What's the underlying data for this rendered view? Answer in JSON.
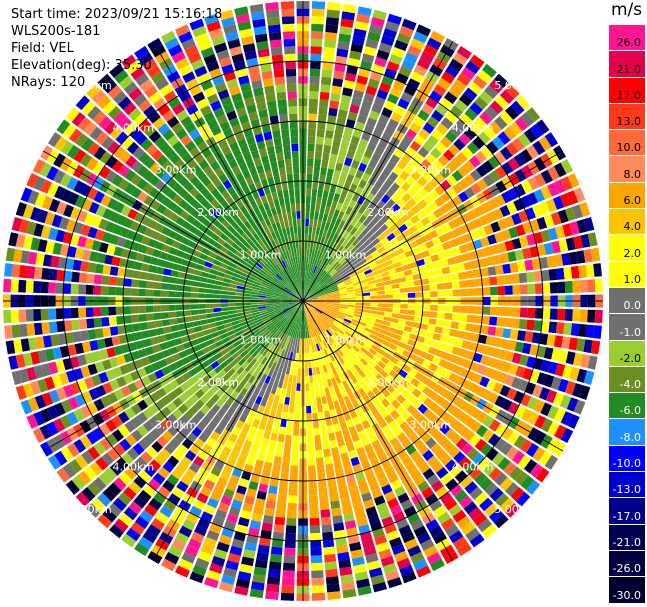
{
  "header": {
    "start_time": "Start time: 2023/09/21 15:16:18",
    "instrument": "WLS200s-181",
    "field": "Field: VEL",
    "elevation": "Elevation(deg): 35.30",
    "nrays": "NRays: 120"
  },
  "colorbar": {
    "unit": "m/s",
    "ticks": [
      "26.0",
      "21.0",
      "17.0",
      "13.0",
      "10.0",
      "8.0",
      "6.0",
      "4.0",
      "2.0",
      "1.0",
      "0.0",
      "-1.0",
      "-2.0",
      "-4.0",
      "-6.0",
      "-8.0",
      "-10.0",
      "-13.0",
      "-17.0",
      "-21.0",
      "-26.0",
      "-30.0"
    ],
    "colors": [
      "#ff1493",
      "#e6004c",
      "#ff0000",
      "#ff3a1a",
      "#ff6a3c",
      "#ff8a5a",
      "#ffa500",
      "#ffc400",
      "#ffff00",
      "#ffff00",
      "#707070",
      "#707070",
      "#9acd32",
      "#6b8e23",
      "#228b22",
      "#1e90ff",
      "#0000ff",
      "#0000cd",
      "#00008b",
      "#000050",
      "#000040",
      "#000030"
    ]
  },
  "chart_data": {
    "type": "ppi",
    "field": "VEL",
    "units": "m/s",
    "nrays": 120,
    "range_rings_km": [
      1.0,
      2.0,
      3.0,
      4.0
    ],
    "ring_labels": [
      "1.00km",
      "2.00km",
      "3.00km",
      "4.00km",
      "5.00km"
    ],
    "max_range_km": 5.0,
    "value_range": [
      -30.0,
      26.0
    ],
    "description_of_pattern": "inner ring mostly green/olive (negative), southeast half orange/yellow (positive), gray boundary, outer rings noisy multicolor"
  }
}
